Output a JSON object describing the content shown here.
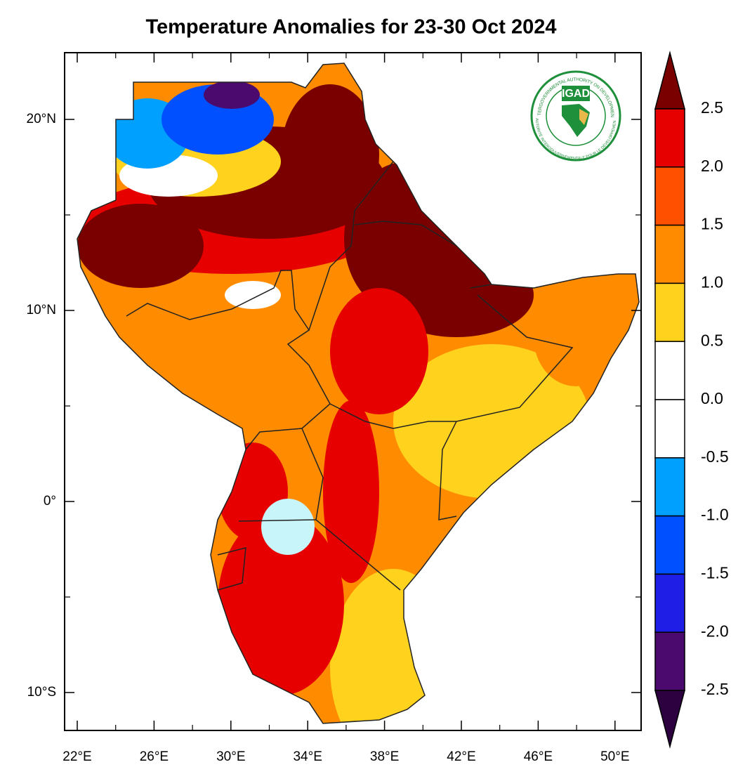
{
  "title": "Temperature Anomalies for 23-30 Oct 2024",
  "lat_labels": [
    "20°N",
    "10°N",
    "0°",
    "10°S"
  ],
  "lon_labels": [
    "22°E",
    "26°E",
    "30°E",
    "34°E",
    "38°E",
    "42°E",
    "46°E",
    "50°E"
  ],
  "colorbar": {
    "labels": [
      "2.5",
      "2.0",
      "1.5",
      "1.0",
      "0.5",
      "0.0",
      "-0.5",
      "-1.0",
      "-1.5",
      "-2.0",
      "-2.5"
    ],
    "colors": [
      "#7a0000",
      "#e60000",
      "#ff5000",
      "#ff8c00",
      "#ffd21e",
      "#ffffff",
      "#ffffff",
      "#00a0ff",
      "#0050ff",
      "#1e1ee6",
      "#4b0a6e",
      "#2d0040"
    ]
  },
  "logo": {
    "name": "IGAD",
    "ring_top": "INTERGOVERNMENTAL AUTHORITY ON DEVELOPMENT",
    "ring_bottom": "AUTORITÉ INTERGOUVERNEMENTALE POUR LE DÉVELOPPEMENT"
  }
}
